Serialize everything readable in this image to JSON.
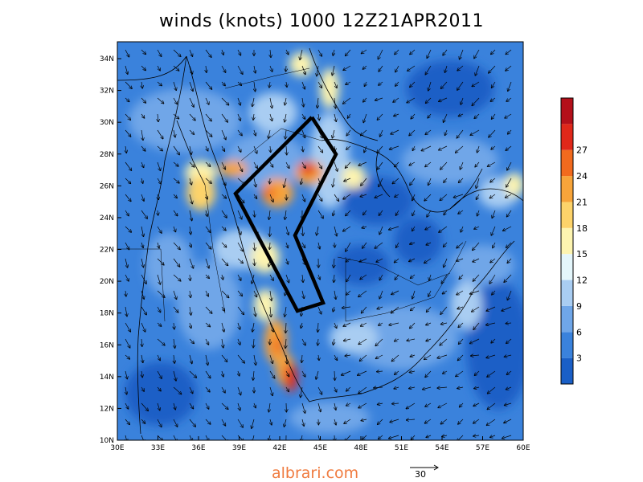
{
  "title": "winds (knots) 1000 12Z21APR2011",
  "x_ticks": [
    "30E",
    "33E",
    "36E",
    "39E",
    "42E",
    "45E",
    "48E",
    "51E",
    "54E",
    "57E",
    "60E"
  ],
  "y_ticks": [
    "10N",
    "12N",
    "14N",
    "16N",
    "18N",
    "20N",
    "22N",
    "24N",
    "26N",
    "28N",
    "30N",
    "32N",
    "34N"
  ],
  "colorbar": {
    "labels": [
      "3",
      "6",
      "9",
      "12",
      "15",
      "18",
      "21",
      "24",
      "27"
    ],
    "colors": [
      "#1a5fc6",
      "#3a82dc",
      "#6fa6e8",
      "#a9cdf2",
      "#e4f6fb",
      "#fdf4b0",
      "#fdd36a",
      "#f7a43a",
      "#f16a1e",
      "#e0281a",
      "#b4101a"
    ]
  },
  "reference_vector": {
    "value": "30"
  },
  "watermark": "albrari.com"
}
